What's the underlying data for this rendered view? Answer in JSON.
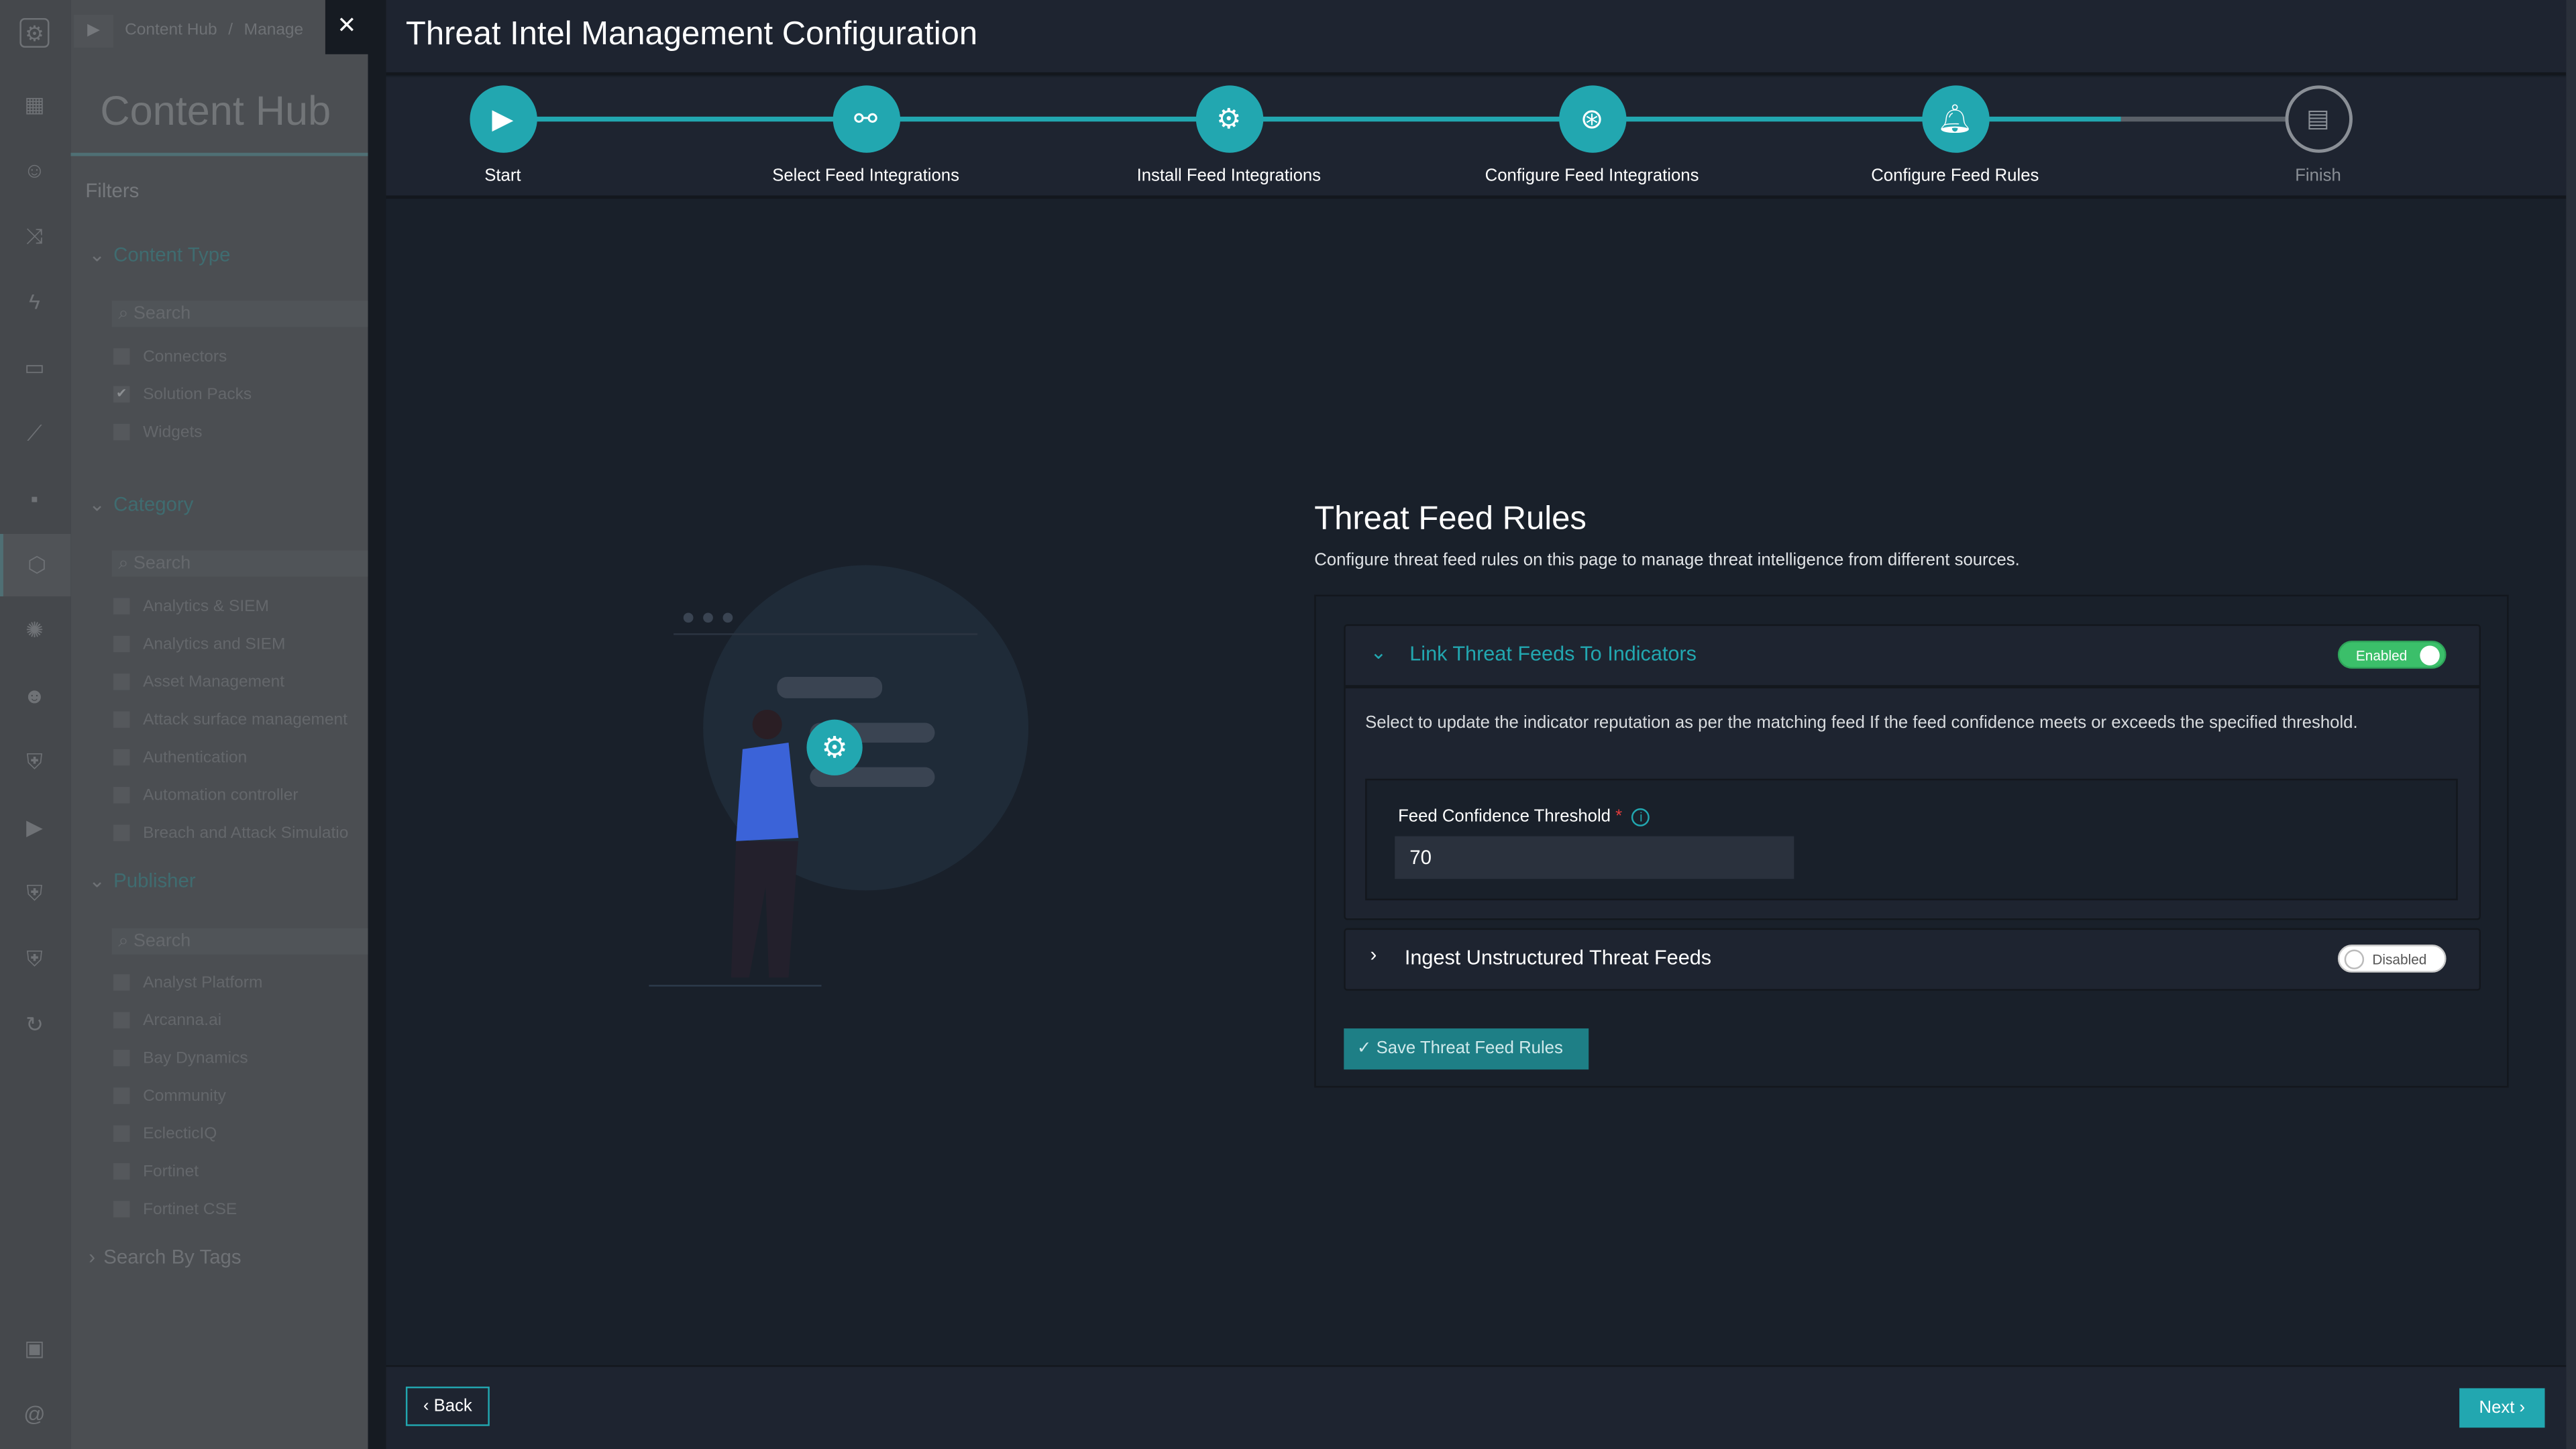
{
  "sidebar": {
    "breadcrumb": [
      "Content Hub",
      "/",
      "Manage"
    ],
    "title": "Content Hub",
    "filters_label": "Filters",
    "content_type": {
      "label": "Content Type",
      "search_placeholder": "Search",
      "items": [
        {
          "label": "Connectors",
          "checked": false
        },
        {
          "label": "Solution Packs",
          "checked": true
        },
        {
          "label": "Widgets",
          "checked": false
        }
      ]
    },
    "category": {
      "label": "Category",
      "search_placeholder": "Search",
      "items": [
        {
          "label": "Analytics & SIEM"
        },
        {
          "label": "Analytics and SIEM"
        },
        {
          "label": "Asset Management"
        },
        {
          "label": "Attack surface management"
        },
        {
          "label": "Authentication"
        },
        {
          "label": "Automation controller"
        },
        {
          "label": "Breach and Attack Simulatio"
        }
      ]
    },
    "publisher": {
      "label": "Publisher",
      "search_placeholder": "Search",
      "items": [
        {
          "label": "Analyst Platform"
        },
        {
          "label": "Arcanna.ai"
        },
        {
          "label": "Bay Dynamics"
        },
        {
          "label": "Community"
        },
        {
          "label": "EclecticIQ"
        },
        {
          "label": "Fortinet"
        },
        {
          "label": "Fortinet CSE"
        }
      ]
    },
    "search_by_tags": "Search By Tags",
    "close_icon": "✕"
  },
  "wizard": {
    "title": "Threat Intel Management Configuration",
    "steps": [
      {
        "label": "Start",
        "icon": "play-icon",
        "done": true
      },
      {
        "label": "Select Feed Integrations",
        "icon": "plug-icon",
        "done": true
      },
      {
        "label": "Install Feed Integrations",
        "icon": "gear-install-icon",
        "done": true
      },
      {
        "label": "Configure Feed Integrations",
        "icon": "configure-icon",
        "done": true
      },
      {
        "label": "Configure Feed Rules",
        "icon": "bell-icon",
        "done": true
      },
      {
        "label": "Finish",
        "icon": "report-icon",
        "done": false
      }
    ],
    "accent": "#22a7b0"
  },
  "rules": {
    "heading": "Threat Feed Rules",
    "description": "Configure threat feed rules on this page to manage threat intelligence from different sources.",
    "link": {
      "title": "Link Threat Feeds To Indicators",
      "toggle": "Enabled",
      "enabled": true,
      "description": "Select to update the indicator reputation as per the matching feed If the feed confidence meets or exceeds the specified threshold.",
      "threshold_label": "Feed Confidence Threshold",
      "required_mark": "*",
      "info_icon": "i",
      "threshold_value": "70"
    },
    "ingest": {
      "title": "Ingest Unstructured Threat Feeds",
      "toggle": "Disabled",
      "enabled": false
    },
    "save_label": "Save Threat Feed Rules"
  },
  "footer": {
    "back_label": "Back",
    "next_label": "Next"
  }
}
